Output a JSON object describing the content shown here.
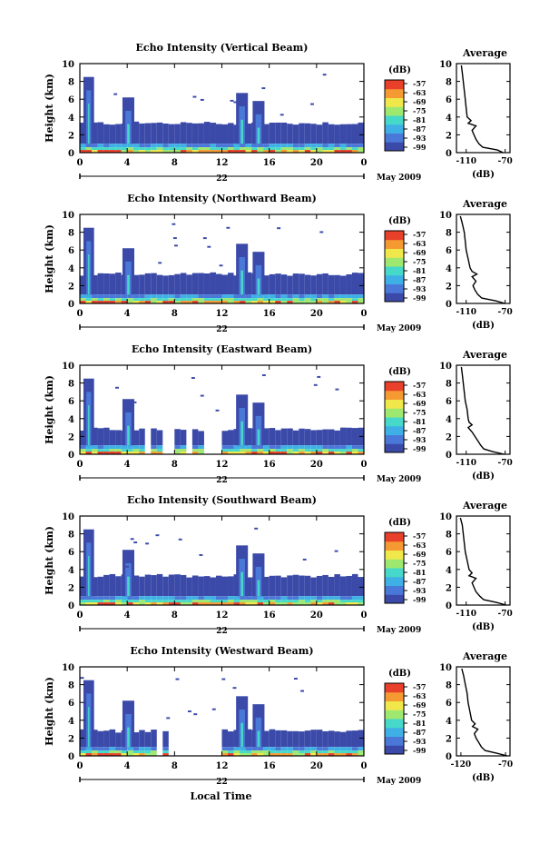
{
  "panels": [
    {
      "title": "Echo Intensity (Vertical Beam)",
      "profile_shape": "vertical"
    },
    {
      "title": "Echo Intensity (Northward Beam)",
      "profile_shape": "north"
    },
    {
      "title": "Echo Intensity (Eastward Beam)",
      "profile_shape": "east"
    },
    {
      "title": "Echo Intensity (Southward Beam)",
      "profile_shape": "south"
    },
    {
      "title": "Echo Intensity (Westward Beam)",
      "profile_shape": "west"
    }
  ],
  "common": {
    "ylabel": "Height (km)",
    "yticks": [
      "0",
      "2",
      "4",
      "6",
      "8",
      "10"
    ],
    "xticks": [
      "0",
      "4",
      "8",
      "12",
      "16",
      "20",
      "0"
    ],
    "date_day": "22",
    "date_month": "May 2009",
    "cbar_unit": "(dB)",
    "cbar_ticks": [
      "-57",
      "-63",
      "-69",
      "-75",
      "-81",
      "-87",
      "-93",
      "-99"
    ],
    "avg_title": "Average",
    "avg_unit": "(dB)",
    "avg_xticks_default": [
      "-110",
      "-70"
    ],
    "avg_xticks_last": [
      "-120",
      "-70"
    ],
    "xlabel_bottom": "Local Time"
  },
  "colors": {
    "colormap": [
      "#3b4aa8",
      "#4a78d8",
      "#3fb0e6",
      "#46d8c8",
      "#9ee870",
      "#f0e84a",
      "#f59a32",
      "#e8402a"
    ],
    "ink": "#000000"
  },
  "chart_data": [
    {
      "type": "heatmap",
      "title": "Echo Intensity (Vertical Beam)",
      "ylabel": "Height (km)",
      "x_range": [
        0,
        24
      ],
      "y_range": [
        0,
        10
      ],
      "colorbar": {
        "label": "(dB)",
        "range": [
          -99,
          -57
        ]
      },
      "profile": {
        "title": "Average",
        "xlabel": "(dB)",
        "x_range": [
          -120,
          -65
        ],
        "heights": [
          0,
          0.3,
          0.6,
          1,
          1.5,
          2,
          2.5,
          3,
          3.3,
          3.6,
          4,
          5,
          6,
          7,
          8,
          9,
          9.8
        ],
        "values": [
          -72,
          -78,
          -93,
          -97,
          -100,
          -102,
          -104,
          -100,
          -108,
          -105,
          -109,
          -110,
          -111,
          -112,
          -113,
          -114,
          -115
        ]
      }
    },
    {
      "type": "heatmap",
      "title": "Echo Intensity (Northward Beam)",
      "ylabel": "Height (km)",
      "x_range": [
        0,
        24
      ],
      "y_range": [
        0,
        10
      ],
      "colorbar": {
        "label": "(dB)",
        "range": [
          -99,
          -57
        ]
      },
      "profile": {
        "title": "Average",
        "xlabel": "(dB)",
        "x_range": [
          -120,
          -65
        ],
        "heights": [
          0,
          0.3,
          0.6,
          1,
          1.5,
          2,
          2.5,
          3,
          3.3,
          3.6,
          4,
          5,
          6,
          7,
          8,
          9,
          9.8
        ],
        "values": [
          -70,
          -80,
          -94,
          -98,
          -101,
          -103,
          -100,
          -104,
          -99,
          -104,
          -106,
          -108,
          -110,
          -111,
          -112,
          -114,
          -116
        ]
      }
    },
    {
      "type": "heatmap",
      "title": "Echo Intensity (Eastward Beam)",
      "ylabel": "Height (km)",
      "x_range": [
        0,
        24
      ],
      "y_range": [
        0,
        10
      ],
      "colorbar": {
        "label": "(dB)",
        "range": [
          -99,
          -57
        ]
      },
      "profile": {
        "title": "Average",
        "xlabel": "(dB)",
        "x_range": [
          -120,
          -65
        ],
        "heights": [
          0,
          0.3,
          0.6,
          1,
          1.5,
          2,
          2.5,
          3,
          3.3,
          3.6,
          4,
          5,
          6,
          7,
          8,
          9,
          9.8
        ],
        "values": [
          -71,
          -83,
          -92,
          -95,
          -98,
          -101,
          -104,
          -108,
          -104,
          -107,
          -108,
          -109,
          -111,
          -112,
          -113,
          -114,
          -115
        ]
      }
    },
    {
      "type": "heatmap",
      "title": "Echo Intensity (Southward Beam)",
      "ylabel": "Height (km)",
      "x_range": [
        0,
        24
      ],
      "y_range": [
        0,
        10
      ],
      "colorbar": {
        "label": "(dB)",
        "range": [
          -99,
          -57
        ]
      },
      "profile": {
        "title": "Average",
        "xlabel": "(dB)",
        "x_range": [
          -120,
          -65
        ],
        "heights": [
          0,
          0.3,
          0.6,
          1,
          1.5,
          2,
          2.5,
          3,
          3.3,
          3.6,
          4,
          5,
          6,
          7,
          8,
          9,
          9.8
        ],
        "values": [
          -69,
          -79,
          -92,
          -96,
          -100,
          -102,
          -104,
          -100,
          -107,
          -104,
          -107,
          -109,
          -111,
          -112,
          -113,
          -114,
          -116
        ]
      }
    },
    {
      "type": "heatmap",
      "title": "Echo Intensity (Westward Beam)",
      "ylabel": "Height (km)",
      "x_range": [
        0,
        24
      ],
      "y_range": [
        0,
        10
      ],
      "colorbar": {
        "label": "(dB)",
        "range": [
          -99,
          -57
        ]
      },
      "profile": {
        "title": "Average",
        "xlabel": "(dB)",
        "x_range": [
          -125,
          -65
        ],
        "heights": [
          0,
          0.3,
          0.6,
          1,
          1.5,
          2,
          2.5,
          3,
          3.3,
          3.6,
          4,
          5,
          6,
          7,
          8,
          9,
          9.8
        ],
        "values": [
          -68,
          -80,
          -93,
          -97,
          -100,
          -103,
          -105,
          -101,
          -107,
          -104,
          -108,
          -110,
          -112,
          -113,
          -115,
          -117,
          -119
        ]
      }
    }
  ]
}
